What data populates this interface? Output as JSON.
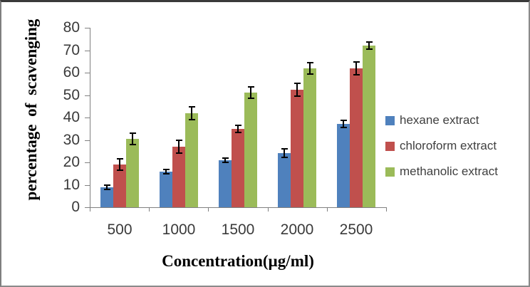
{
  "figure": {
    "background": "#ffffff",
    "border_top_color": "#3a3a3a",
    "border_side_color": "#8a8a8a"
  },
  "chart_data": {
    "type": "bar",
    "title": "",
    "xlabel": "Concentration(µg/ml)",
    "ylabel": "percentage of scavenging",
    "categories": [
      "500",
      "1000",
      "1500",
      "2000",
      "2500"
    ],
    "y_ticks": [
      0,
      10,
      20,
      30,
      40,
      50,
      60,
      70,
      80
    ],
    "ylim": [
      0,
      80
    ],
    "grid": false,
    "legend_position": "right-middle",
    "axis_color": "#808080",
    "error_bar_color": "#000000",
    "error_bars": true,
    "series": [
      {
        "name": "hexane extract",
        "color": "#4F81BD",
        "values": [
          9,
          16,
          21,
          24,
          37
        ],
        "errors": [
          1,
          1,
          1,
          2,
          1.5
        ]
      },
      {
        "name": "chloroform extract",
        "color": "#C0504D",
        "values": [
          19,
          27,
          35,
          52.5,
          62
        ],
        "errors": [
          2.5,
          3,
          1.5,
          3,
          3
        ]
      },
      {
        "name": "methanolic extract",
        "color": "#9BBB59",
        "values": [
          30.5,
          42,
          51,
          62,
          72
        ],
        "errors": [
          2.5,
          3,
          2.5,
          2.5,
          1.5
        ]
      }
    ]
  }
}
